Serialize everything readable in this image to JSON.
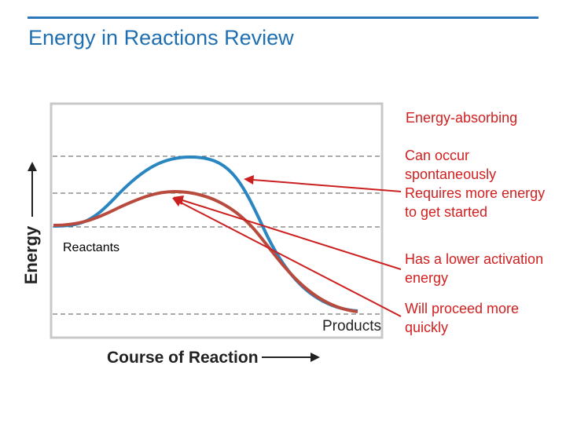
{
  "slide": {
    "title": "Energy in Reactions Review"
  },
  "diagram": {
    "y_axis_label": "Energy",
    "x_axis_label": "Course of Reaction",
    "reactants_label": "Reactants",
    "products_label": "Products",
    "curves": [
      {
        "name": "uncatalyzed",
        "color": "#2a86c0"
      },
      {
        "name": "catalyzed",
        "color": "#b94a3e"
      }
    ],
    "colors": {
      "annotation": "#d11f1f",
      "arrow": "#cc2020",
      "frame": "#c8c8c8",
      "gridline": "#555555"
    }
  },
  "annotations": {
    "energy_absorbing": "Energy-absorbing",
    "spontaneous_lines": [
      "Can occur",
      "spontaneously",
      "Requires more energy",
      "to get started"
    ],
    "lower_activation_lines": [
      "Has a lower activation",
      "energy"
    ],
    "proceed_quickly_lines": [
      "Will proceed more",
      "quickly"
    ]
  }
}
